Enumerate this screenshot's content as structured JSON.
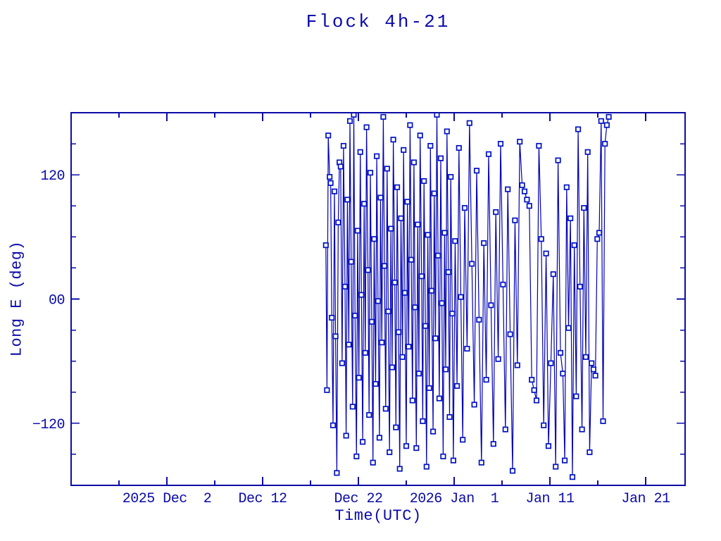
{
  "window": {
    "background_color": "#ffffff"
  },
  "colors": {
    "axis": "#0b0ba8",
    "text": "#0b0ba8",
    "data_line": "#0000b4",
    "marker_stroke": "#0011c4",
    "marker_fill": "#ffffff",
    "background": "#ffffff"
  },
  "chart_data": {
    "type": "line",
    "title": "Flock 4h-21",
    "xlabel": "Time(UTC)",
    "ylabel": "Long E (deg)",
    "x_unit": "days since 2025 Nov 22 00:00 UTC",
    "xlim": [
      0,
      64.118
    ],
    "ylim": [
      -180,
      180
    ],
    "grid": false,
    "legend": "none",
    "marker": "open-square",
    "x_major_ticks": [
      {
        "day": 10,
        "label": "2025 Dec  2"
      },
      {
        "day": 20,
        "label": "Dec 12"
      },
      {
        "day": 30,
        "label": "Dec 22"
      },
      {
        "day": 40,
        "label": "2026 Jan  1"
      },
      {
        "day": 50,
        "label": "Jan 11"
      },
      {
        "day": 60,
        "label": "Jan 21"
      }
    ],
    "x_minor_ticks": [
      5,
      15,
      25,
      35,
      45,
      55
    ],
    "y_major_ticks": [
      {
        "value": 120,
        "label": "120"
      },
      {
        "value": 0,
        "label": "00"
      },
      {
        "value": -120,
        "label": "−120"
      }
    ],
    "y_minor_ticks": [
      -150,
      -90,
      -60,
      -30,
      30,
      60,
      90,
      150
    ],
    "points": [
      [
        26.6,
        52
      ],
      [
        26.72,
        -88
      ],
      [
        26.85,
        158
      ],
      [
        27.0,
        118
      ],
      [
        27.1,
        112
      ],
      [
        27.22,
        -18
      ],
      [
        27.35,
        -122
      ],
      [
        27.5,
        104
      ],
      [
        27.62,
        -36
      ],
      [
        27.75,
        -168
      ],
      [
        27.9,
        74
      ],
      [
        28.02,
        132
      ],
      [
        28.15,
        128
      ],
      [
        28.3,
        -62
      ],
      [
        28.45,
        148
      ],
      [
        28.6,
        12
      ],
      [
        28.72,
        -132
      ],
      [
        28.85,
        96
      ],
      [
        29.0,
        -44
      ],
      [
        29.12,
        172
      ],
      [
        29.25,
        36
      ],
      [
        29.4,
        -104
      ],
      [
        29.52,
        178
      ],
      [
        29.65,
        -16
      ],
      [
        29.8,
        -152
      ],
      [
        29.92,
        66
      ],
      [
        30.05,
        -76
      ],
      [
        30.2,
        142
      ],
      [
        30.32,
        4
      ],
      [
        30.45,
        -138
      ],
      [
        30.6,
        92
      ],
      [
        30.72,
        -52
      ],
      [
        30.85,
        166
      ],
      [
        31.0,
        28
      ],
      [
        31.12,
        -112
      ],
      [
        31.25,
        122
      ],
      [
        31.4,
        -22
      ],
      [
        31.52,
        -158
      ],
      [
        31.65,
        58
      ],
      [
        31.8,
        -82
      ],
      [
        31.92,
        138
      ],
      [
        32.05,
        -2
      ],
      [
        32.2,
        -134
      ],
      [
        32.32,
        98
      ],
      [
        32.45,
        -42
      ],
      [
        32.6,
        176
      ],
      [
        32.72,
        32
      ],
      [
        32.85,
        -106
      ],
      [
        33.0,
        126
      ],
      [
        33.12,
        -12
      ],
      [
        33.25,
        -148
      ],
      [
        33.4,
        68
      ],
      [
        33.52,
        -66
      ],
      [
        33.65,
        154
      ],
      [
        33.8,
        16
      ],
      [
        33.92,
        -124
      ],
      [
        34.05,
        108
      ],
      [
        34.2,
        -32
      ],
      [
        34.32,
        -164
      ],
      [
        34.45,
        78
      ],
      [
        34.6,
        -56
      ],
      [
        34.72,
        144
      ],
      [
        34.85,
        6
      ],
      [
        35.0,
        -142
      ],
      [
        35.12,
        94
      ],
      [
        35.25,
        -46
      ],
      [
        35.4,
        168
      ],
      [
        35.52,
        38
      ],
      [
        35.65,
        -98
      ],
      [
        35.8,
        132
      ],
      [
        35.92,
        -8
      ],
      [
        36.05,
        -144
      ],
      [
        36.2,
        72
      ],
      [
        36.32,
        -72
      ],
      [
        36.45,
        158
      ],
      [
        36.6,
        22
      ],
      [
        36.72,
        -118
      ],
      [
        36.85,
        114
      ],
      [
        37.0,
        -26
      ],
      [
        37.12,
        -162
      ],
      [
        37.25,
        62
      ],
      [
        37.4,
        -86
      ],
      [
        37.52,
        148
      ],
      [
        37.65,
        8
      ],
      [
        37.8,
        -128
      ],
      [
        37.92,
        102
      ],
      [
        38.05,
        -38
      ],
      [
        38.2,
        178
      ],
      [
        38.32,
        42
      ],
      [
        38.45,
        -96
      ],
      [
        38.6,
        136
      ],
      [
        38.72,
        -4
      ],
      [
        38.85,
        -152
      ],
      [
        39.0,
        64
      ],
      [
        39.12,
        -68
      ],
      [
        39.25,
        162
      ],
      [
        39.4,
        26
      ],
      [
        39.52,
        -114
      ],
      [
        39.65,
        118
      ],
      [
        39.8,
        -14
      ],
      [
        39.92,
        -156
      ],
      [
        40.1,
        56
      ],
      [
        40.3,
        -84
      ],
      [
        40.5,
        146
      ],
      [
        40.7,
        2
      ],
      [
        40.9,
        -136
      ],
      [
        41.1,
        88
      ],
      [
        41.35,
        -48
      ],
      [
        41.6,
        170
      ],
      [
        41.85,
        34
      ],
      [
        42.1,
        -102
      ],
      [
        42.35,
        124
      ],
      [
        42.6,
        -20
      ],
      [
        42.85,
        -158
      ],
      [
        43.1,
        54
      ],
      [
        43.35,
        -78
      ],
      [
        43.6,
        140
      ],
      [
        43.85,
        -6
      ],
      [
        44.1,
        -140
      ],
      [
        44.35,
        84
      ],
      [
        44.6,
        -58
      ],
      [
        44.85,
        150
      ],
      [
        45.1,
        14
      ],
      [
        45.35,
        -126
      ],
      [
        45.6,
        106
      ],
      [
        45.85,
        -34
      ],
      [
        46.1,
        -166
      ],
      [
        46.35,
        76
      ],
      [
        46.6,
        -64
      ],
      [
        46.85,
        152
      ],
      [
        47.1,
        110
      ],
      [
        47.35,
        104
      ],
      [
        47.6,
        96
      ],
      [
        47.85,
        90
      ],
      [
        48.1,
        -78
      ],
      [
        48.35,
        -88
      ],
      [
        48.6,
        -98
      ],
      [
        48.85,
        148
      ],
      [
        49.1,
        58
      ],
      [
        49.35,
        -122
      ],
      [
        49.6,
        44
      ],
      [
        49.85,
        -142
      ],
      [
        50.1,
        -62
      ],
      [
        50.35,
        24
      ],
      [
        50.6,
        -162
      ],
      [
        50.85,
        134
      ],
      [
        51.1,
        -52
      ],
      [
        51.35,
        -72
      ],
      [
        51.55,
        -156
      ],
      [
        51.75,
        108
      ],
      [
        51.95,
        -28
      ],
      [
        52.15,
        78
      ],
      [
        52.35,
        -172
      ],
      [
        52.55,
        52
      ],
      [
        52.75,
        -94
      ],
      [
        52.95,
        164
      ],
      [
        53.15,
        12
      ],
      [
        53.35,
        -126
      ],
      [
        53.55,
        88
      ],
      [
        53.75,
        -56
      ],
      [
        53.95,
        142
      ],
      [
        54.15,
        -148
      ],
      [
        54.35,
        -62
      ],
      [
        54.55,
        -68
      ],
      [
        54.75,
        -74
      ],
      [
        54.95,
        58
      ],
      [
        55.15,
        64
      ],
      [
        55.35,
        172
      ],
      [
        55.55,
        -118
      ],
      [
        55.75,
        150
      ],
      [
        55.95,
        168
      ],
      [
        56.15,
        176
      ]
    ]
  }
}
